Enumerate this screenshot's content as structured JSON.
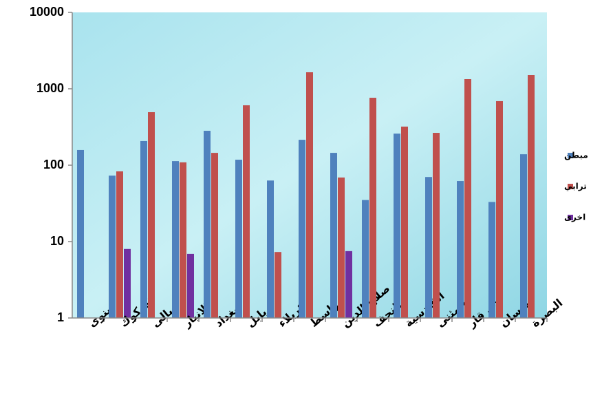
{
  "chart_data": {
    "type": "bar",
    "log_scale": true,
    "categories": [
      "نينوى",
      "كركوك",
      "ديالى",
      "الانبار",
      "بغداد",
      "بابل",
      "كربلاء",
      "واسط",
      "صلاح الدين",
      "النجف",
      "القادسية",
      "المثنى",
      "ذي قار",
      "ميسان",
      "البصرة"
    ],
    "series": [
      {
        "name": "مبطن",
        "color": "#4f81bd",
        "values": [
          158,
          73,
          207,
          113,
          282,
          118,
          63,
          215,
          145,
          35,
          259,
          70,
          62,
          33,
          139
        ]
      },
      {
        "name": "ترابي",
        "color": "#c0504d",
        "values": [
          null,
          83,
          494,
          109,
          145,
          608,
          7.3,
          1645,
          69,
          763,
          320,
          265,
          1337,
          689,
          1514
        ]
      },
      {
        "name": "اخرى",
        "color": "#7030a0",
        "values": [
          null,
          8,
          null,
          6.9,
          null,
          null,
          null,
          null,
          7.5,
          null,
          null,
          null,
          null,
          null,
          null
        ]
      }
    ],
    "ylim": [
      1,
      10000
    ],
    "yticks": [
      1,
      10,
      100,
      1000,
      10000
    ],
    "legend": "right"
  }
}
